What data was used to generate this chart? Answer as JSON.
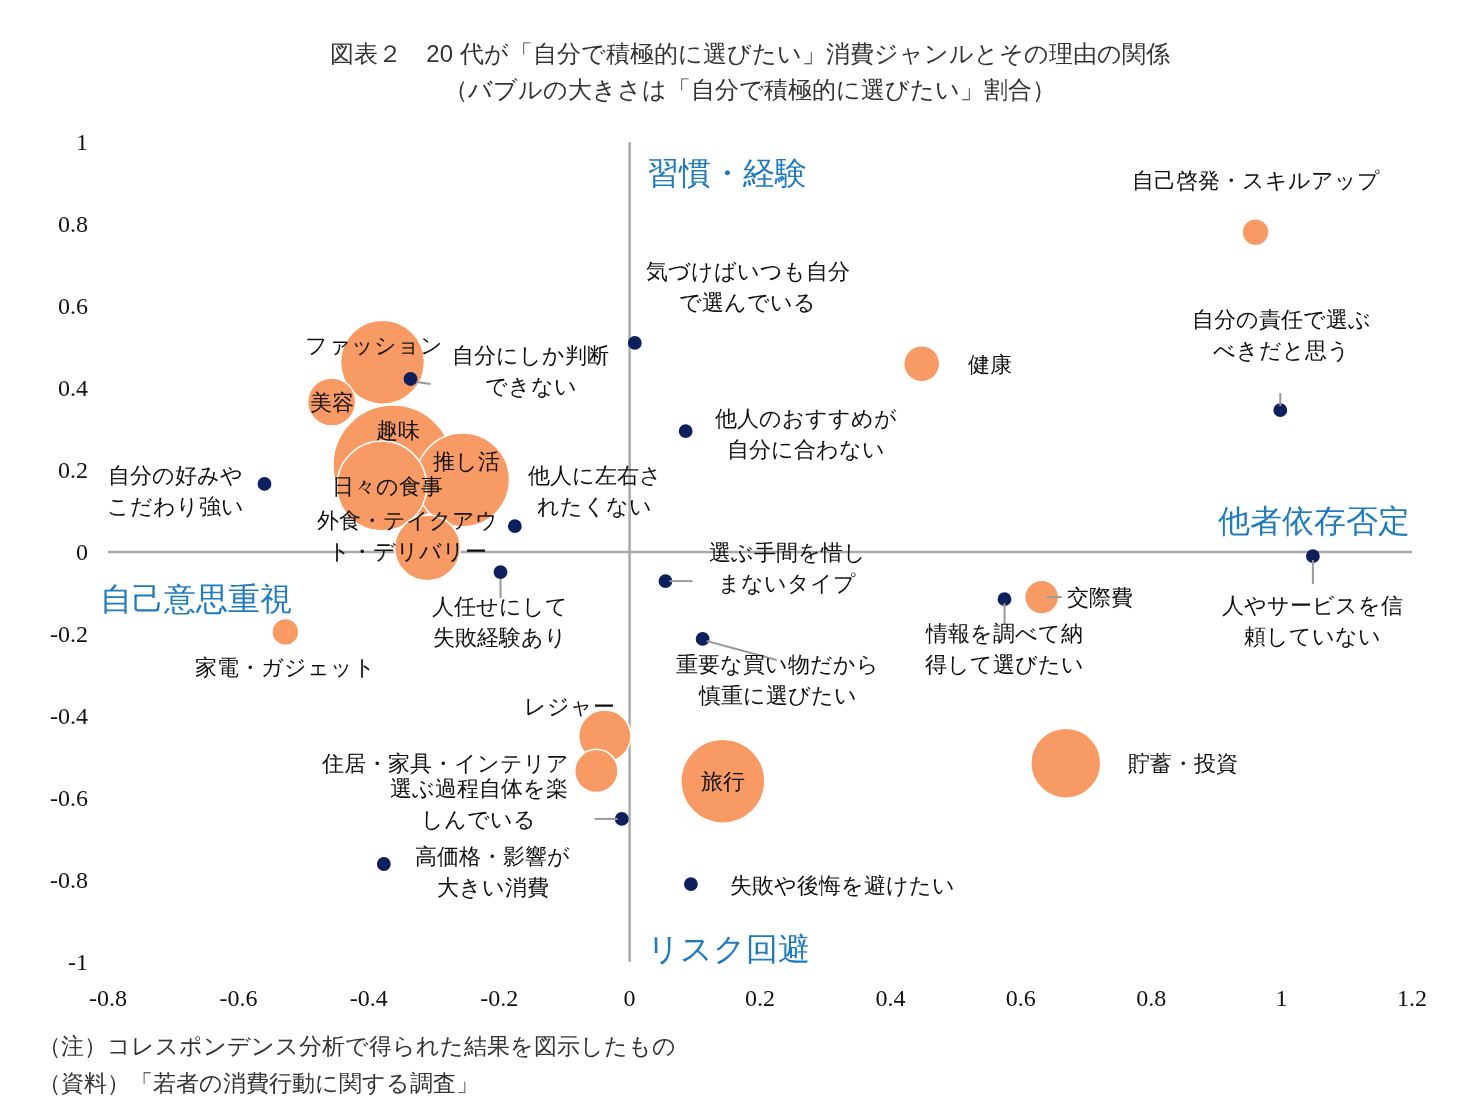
{
  "chart_data": {
    "type": "bubble",
    "title": "図表２　20 代が「自分で積極的に選びたい」消費ジャンルとその理由の関係",
    "subtitle": "（バブルの大きさは「自分で積極的に選びたい」割合）",
    "xlim": [
      -0.8,
      1.2
    ],
    "xticks": [
      -0.8,
      -0.6,
      -0.4,
      -0.2,
      0,
      0.2,
      0.4,
      0.6,
      0.8,
      1,
      1.2
    ],
    "ylim": [
      -1,
      1
    ],
    "yticks": [
      -1,
      -0.8,
      -0.6,
      -0.4,
      -0.2,
      0,
      0.2,
      0.4,
      0.6,
      0.8,
      1
    ],
    "marker": "circle",
    "series": [
      {
        "color": "#f79a63",
        "x": [
          0.96,
          0.448,
          -0.379,
          -0.457,
          -0.363,
          -0.256,
          -0.38,
          -0.31,
          -0.528,
          -0.038,
          -0.051,
          0.143,
          0.669,
          0.632
        ],
        "values": [
          0.78,
          0.459,
          0.463,
          0.366,
          0.212,
          0.176,
          0.161,
          0.01,
          -0.195,
          -0.449,
          -0.534,
          -0.559,
          -0.515,
          -0.11
        ],
        "sizes": [
          0.05,
          0.09,
          0.49,
          0.16,
          1,
          0.61,
          0.56,
          0.3,
          0.05,
          0.19,
          0.13,
          0.49,
          0.34,
          0.08
        ]
      },
      {
        "type": "scatter",
        "color": "#0d1f5c",
        "x": [
          0.008,
          -0.336,
          0.086,
          -0.56,
          -0.176,
          -0.198,
          0.055,
          0.112,
          0.575,
          1.048,
          0.998,
          -0.012,
          -0.377,
          0.094
        ],
        "values": [
          0.51,
          0.422,
          0.295,
          0.166,
          0.063,
          -0.049,
          -0.071,
          -0.212,
          -0.115,
          -0.01,
          0.346,
          -0.651,
          -0.761,
          -0.81
        ]
      }
    ],
    "annotations": [
      "習慣・経験",
      "リスク回避",
      "自己意思重視",
      "他者依存否定",
      "（注）コレスポンデンス分析で得られた結果を図示したもの",
      "（資料）「若者の消費行動に関する調査」",
      {
        "text": "自己啓発・スキルアップ",
        "x": 0.96,
        "y": 0.78
      },
      {
        "text": "健康",
        "x": 0.448,
        "y": 0.459
      },
      {
        "text": "ファッション",
        "x": -0.379,
        "y": 0.463
      },
      {
        "text": "美容",
        "x": -0.457,
        "y": 0.366
      },
      {
        "text": "趣味",
        "x": -0.363,
        "y": 0.212
      },
      {
        "text": "推し活",
        "x": -0.256,
        "y": 0.176
      },
      {
        "text": "日々の食事",
        "x": -0.38,
        "y": 0.161
      },
      {
        "text": "外食・テイクアウト・デリバリー",
        "x": -0.31,
        "y": 0.01
      },
      {
        "text": "家電・ガジェット",
        "x": -0.528,
        "y": -0.195
      },
      {
        "text": "レジャー",
        "x": -0.038,
        "y": -0.449
      },
      {
        "text": "住居・家具・インテリア",
        "x": -0.051,
        "y": -0.534
      },
      {
        "text": "旅行",
        "x": 0.143,
        "y": -0.559
      },
      {
        "text": "貯蓄・投資",
        "x": 0.669,
        "y": -0.515
      },
      {
        "text": "交際費",
        "x": 0.632,
        "y": -0.11
      },
      {
        "text": "気づけばいつも自分で選んでいる",
        "x": 0.008,
        "y": 0.51
      },
      {
        "text": "自分にしか判断できない",
        "x": -0.336,
        "y": 0.422
      },
      {
        "text": "他人のおすすめが自分に合わない",
        "x": 0.086,
        "y": 0.295
      },
      {
        "text": "自分の好みやこだわり強い",
        "x": -0.56,
        "y": 0.166
      },
      {
        "text": "他人に左右されたくない",
        "x": -0.176,
        "y": 0.063
      },
      {
        "text": "人任せにして失敗経験あり",
        "x": -0.198,
        "y": -0.049
      },
      {
        "text": "選ぶ手間を惜しまないタイプ",
        "x": 0.055,
        "y": -0.071
      },
      {
        "text": "重要な買い物だから慎重に選びたい",
        "x": 0.112,
        "y": -0.212
      },
      {
        "text": "情報を調べて納得して選びたい",
        "x": 0.575,
        "y": -0.115
      },
      {
        "text": "人やサービスを信頼していない",
        "x": 1.048,
        "y": -0.01
      },
      {
        "text": "自分の責任で選ぶべきだと思う",
        "x": 0.998,
        "y": 0.346
      },
      {
        "text": "選ぶ過程自体を楽しんでいる",
        "x": -0.012,
        "y": -0.651
      },
      {
        "text": "高価格・影響が大きい消費",
        "x": -0.377,
        "y": -0.761
      },
      {
        "text": "失敗や後悔を避けたい",
        "x": 0.094,
        "y": -0.81
      }
    ]
  }
}
